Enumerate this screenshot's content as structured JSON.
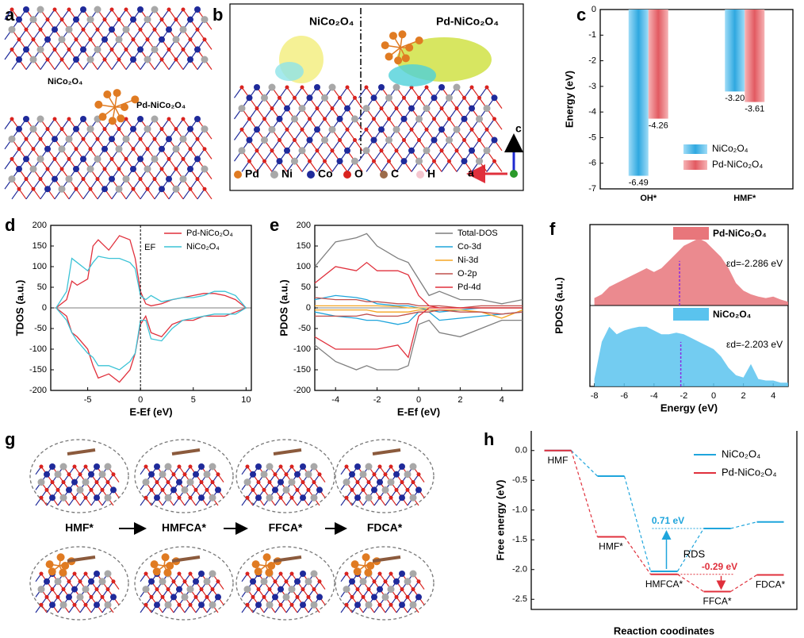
{
  "panel_a": {
    "label": "a",
    "names": [
      "NiCo₂O₄",
      "Pd-NiCo₂O₄"
    ]
  },
  "panel_b": {
    "label": "b",
    "titles": [
      "NiCo₂O₄",
      "Pd-NiCo₂O₄"
    ],
    "legend": [
      "Pd",
      "Ni",
      "Co",
      "O",
      "C",
      "H"
    ],
    "legend_colors": [
      "#e07b22",
      "#a8a8a8",
      "#1f2a9a",
      "#d9231f",
      "#9c6b4a",
      "#f4c6cf"
    ],
    "axes": [
      "a",
      "c"
    ]
  },
  "panel_g": {
    "label": "g",
    "steps": [
      "HMF*",
      "HMFCA*",
      "FFCA*",
      "FDCA*"
    ]
  },
  "chart_data": [
    {
      "type": "bar",
      "label": "c",
      "ylabel": "Energy (eV)",
      "categories": [
        "OH*",
        "HMF*"
      ],
      "series": [
        {
          "name": "NiCo₂O₄",
          "color": "#4cb8e8",
          "values": [
            -6.49,
            -3.2
          ],
          "value_labels": [
            "-6.49",
            "-3.20"
          ]
        },
        {
          "name": "Pd-NiCo₂O₄",
          "color": "#e8767b",
          "values": [
            -4.26,
            -3.61
          ],
          "value_labels": [
            "-4.26",
            "-3.61"
          ]
        }
      ],
      "ylim": [
        -7,
        0
      ],
      "yticks": [
        0,
        -1,
        -2,
        -3,
        -4,
        -5,
        -6,
        -7
      ],
      "legend": "lower right"
    },
    {
      "type": "line",
      "label": "d",
      "xlabel": "E-Ef (eV)",
      "ylabel": "TDOS (a.u.)",
      "annotation": "EF",
      "x": [
        -8,
        -7,
        -6.5,
        -6,
        -5,
        -4.5,
        -4,
        -3,
        -2,
        -1,
        -0.5,
        0,
        0.5,
        1,
        2,
        3,
        4,
        5,
        6,
        7,
        8,
        9,
        10
      ],
      "series": [
        {
          "name": "Pd-NiCo₂O₄",
          "color": "#e0303c",
          "values": [
            0,
            20,
            65,
            55,
            70,
            150,
            165,
            140,
            175,
            165,
            120,
            40,
            10,
            5,
            10,
            20,
            25,
            30,
            35,
            35,
            30,
            20,
            0
          ],
          "values_down": [
            0,
            -20,
            -60,
            -70,
            -100,
            -140,
            -170,
            -160,
            -180,
            -150,
            -110,
            -40,
            -20,
            -60,
            -70,
            -40,
            -30,
            -30,
            -20,
            -20,
            -20,
            -10,
            0
          ]
        },
        {
          "name": "NiCo₂O₄",
          "color": "#3cc3d6",
          "values": [
            0,
            40,
            120,
            110,
            90,
            110,
            125,
            120,
            120,
            110,
            95,
            30,
            20,
            30,
            15,
            20,
            25,
            25,
            30,
            40,
            40,
            30,
            0
          ],
          "values_down": [
            0,
            -30,
            -60,
            -80,
            -110,
            -120,
            -140,
            -140,
            -150,
            -130,
            -110,
            -30,
            -30,
            -75,
            -80,
            -50,
            -30,
            -25,
            -20,
            -15,
            -15,
            -15,
            0
          ]
        }
      ],
      "xlim": [
        -8.5,
        10.5
      ],
      "xticks": [
        -5,
        0,
        5,
        10
      ],
      "ylim": [
        -200,
        200
      ],
      "yticks": [
        200,
        150,
        100,
        50,
        0,
        -50,
        -100,
        -150,
        -200
      ],
      "legend": "upper right"
    },
    {
      "type": "line",
      "label": "e",
      "xlabel": "E-Ef (eV)",
      "ylabel": "PDOS (a.u.)",
      "x": [
        -5,
        -4,
        -3,
        -2.5,
        -2,
        -1,
        -0.5,
        0,
        0.5,
        1,
        2,
        3,
        4,
        5
      ],
      "series": [
        {
          "name": "Total-DOS",
          "color": "#7f7f7f",
          "values": [
            100,
            160,
            170,
            180,
            150,
            120,
            110,
            70,
            30,
            40,
            20,
            20,
            10,
            20
          ],
          "values_down": [
            -90,
            -130,
            -150,
            -140,
            -150,
            -150,
            -140,
            -40,
            -30,
            -60,
            -70,
            -50,
            -30,
            -30
          ]
        },
        {
          "name": "Co-3d",
          "color": "#1fa5dc",
          "values": [
            20,
            30,
            25,
            20,
            10,
            5,
            5,
            0,
            -5,
            -10,
            -5,
            0,
            0,
            0
          ],
          "values_down": [
            -10,
            -20,
            -25,
            -30,
            -30,
            -40,
            -35,
            -10,
            -10,
            -30,
            -25,
            -20,
            -15,
            -10
          ]
        },
        {
          "name": "Ni-3d",
          "color": "#f5a623",
          "values": [
            5,
            5,
            5,
            5,
            5,
            3,
            0,
            0,
            0,
            0,
            0,
            0,
            0,
            0
          ],
          "values_down": [
            -5,
            -5,
            -5,
            -5,
            -10,
            -10,
            -10,
            -5,
            -5,
            -5,
            -5,
            -10,
            -25,
            -5
          ]
        },
        {
          "name": "O-2p",
          "color": "#c0504d",
          "values": [
            25,
            20,
            20,
            15,
            15,
            10,
            10,
            5,
            5,
            5,
            0,
            5,
            5,
            5
          ],
          "values_down": [
            -20,
            -20,
            -20,
            -15,
            -20,
            -20,
            -15,
            -10,
            -10,
            -5,
            -10,
            -10,
            -15,
            -10
          ]
        },
        {
          "name": "Pd-4d",
          "color": "#e0303c",
          "values": [
            60,
            100,
            90,
            110,
            90,
            90,
            80,
            30,
            5,
            0,
            0,
            0,
            0,
            0
          ],
          "values_down": [
            -70,
            -100,
            -100,
            -100,
            -100,
            -90,
            -120,
            -20,
            0,
            0,
            0,
            0,
            0,
            0
          ]
        }
      ],
      "xlim": [
        -5,
        5
      ],
      "xticks": [
        -4,
        -2,
        0,
        2,
        4
      ],
      "ylim": [
        -200,
        200
      ],
      "yticks": [
        200,
        150,
        100,
        50,
        0,
        -50,
        -100,
        -150,
        -200
      ],
      "legend": "upper right"
    },
    {
      "type": "area",
      "label": "f",
      "xlabel": "Energy (eV)",
      "ylabel": "PDOS (a.u.)",
      "x": [
        -8,
        -7.5,
        -7,
        -6.5,
        -6,
        -5.5,
        -5,
        -4.5,
        -4,
        -3.5,
        -3,
        -2.5,
        -2,
        -1.5,
        -1,
        -0.5,
        0,
        0.5,
        1,
        1.5,
        2,
        2.5,
        3,
        3.5,
        4,
        4.5,
        5
      ],
      "series": [
        {
          "name": "Pd-NiCo₂O₄",
          "color": "#e8767b",
          "annotation": "εd=-2.286 eV",
          "d_center": -2.286,
          "values": [
            10,
            15,
            25,
            30,
            35,
            40,
            45,
            50,
            45,
            50,
            60,
            70,
            80,
            85,
            90,
            85,
            75,
            65,
            50,
            30,
            20,
            15,
            12,
            10,
            12,
            8,
            5
          ]
        },
        {
          "name": "NiCo₂O₄",
          "color": "#5ac3ee",
          "annotation": "εd=-2.203 eV",
          "d_center": -2.203,
          "values": [
            10,
            60,
            80,
            70,
            75,
            78,
            80,
            80,
            75,
            70,
            70,
            72,
            70,
            65,
            60,
            55,
            50,
            40,
            25,
            15,
            12,
            30,
            10,
            8,
            8,
            5,
            5
          ]
        }
      ],
      "xlim": [
        -8.3,
        5
      ],
      "xticks": [
        -8,
        -6,
        -4,
        -2,
        0,
        2,
        4
      ],
      "ylim": [
        0,
        100
      ]
    },
    {
      "type": "step",
      "label": "h",
      "xlabel": "Reaction coodinates",
      "ylabel": "Free energy (eV)",
      "categories": [
        "HMF",
        "HMF*",
        "HMFCA*",
        "FFCA*",
        "FDCA*"
      ],
      "series": [
        {
          "name": "NiCo₂O₄",
          "color": "#1fa5dc",
          "values": [
            0,
            -0.43,
            -2.03,
            -1.31,
            -1.2
          ]
        },
        {
          "name": "Pd-NiCo₂O₄",
          "color": "#e0303c",
          "values": [
            0,
            -1.45,
            -2.08,
            -2.37,
            -2.09
          ]
        }
      ],
      "annotations": [
        "0.71 eV",
        "-0.29 eV",
        "RDS"
      ],
      "ylim": [
        -2.67,
        0.33
      ],
      "yticks": [
        {
          "value": 0,
          "label": "0.0"
        },
        -0.5,
        {
          "value": -1,
          "label": "-1.0"
        },
        -1.5,
        {
          "value": -2,
          "label": "-2.0"
        },
        -2.5
      ],
      "legend": "upper right"
    }
  ]
}
